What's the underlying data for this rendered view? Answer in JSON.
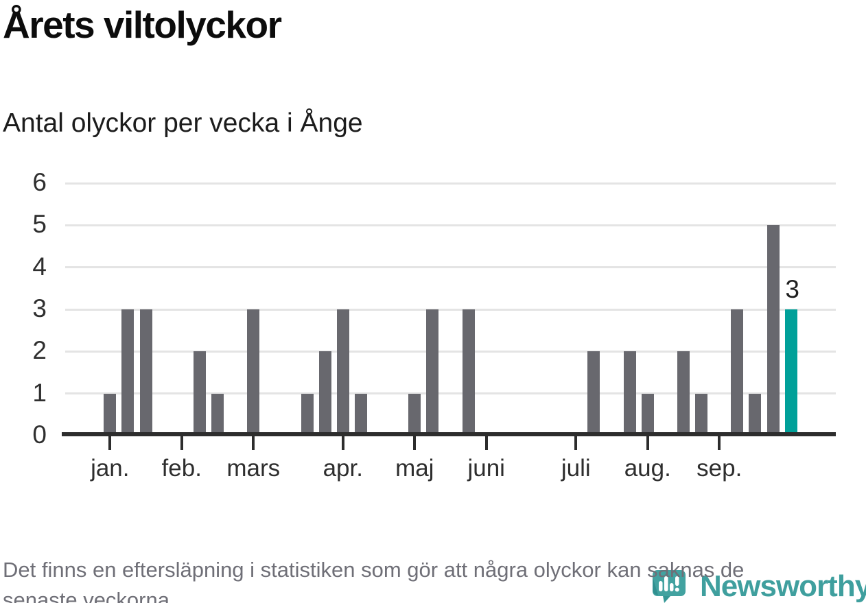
{
  "header": {
    "title": "Årets viltolyckor",
    "subtitle": "Antal olyckor per vecka i Ånge"
  },
  "footer": {
    "note_line1": "Det finns en eftersläpning i statistiken som gör att några olyckor kan saknas de",
    "note_line2": "senaste veckorna.",
    "brand": "Newsworthy"
  },
  "colors": {
    "bar": "#68686e",
    "highlight": "#00a099",
    "gridline": "#e4e4e4",
    "axis": "#2d2d2d",
    "axis_label": "#2f2f2f",
    "title": "#0c0c0c",
    "footer_text": "#6f6f77",
    "brand_teal": "#3f9f9e"
  },
  "chart_data": {
    "type": "bar",
    "title": "Årets viltolyckor",
    "subtitle": "Antal olyckor per vecka i Ånge",
    "ylabel": "Antal olyckor",
    "xlabel": "",
    "ylim": [
      0,
      6
    ],
    "yticks": [
      0,
      1,
      2,
      3,
      4,
      5,
      6
    ],
    "grid": true,
    "legend": "none",
    "weeks": [
      1,
      3,
      3,
      0,
      0,
      2,
      1,
      0,
      3,
      0,
      0,
      1,
      2,
      3,
      1,
      0,
      0,
      1,
      3,
      0,
      3,
      0,
      0,
      0,
      0,
      0,
      0,
      2,
      0,
      2,
      1,
      0,
      2,
      1,
      0,
      3,
      1,
      5,
      3
    ],
    "months": [
      {
        "label": "jan.",
        "week": 0
      },
      {
        "label": "feb.",
        "week": 4
      },
      {
        "label": "mars",
        "week": 8
      },
      {
        "label": "apr.",
        "week": 13
      },
      {
        "label": "maj",
        "week": 17
      },
      {
        "label": "juni",
        "week": 21
      },
      {
        "label": "juli",
        "week": 26
      },
      {
        "label": "aug.",
        "week": 30
      },
      {
        "label": "sep.",
        "week": 34
      }
    ],
    "highlight_index": 38,
    "highlight_value": 3,
    "highlight_label": "3",
    "lead_padding_slots": 2,
    "trail_padding_slots": 2
  }
}
